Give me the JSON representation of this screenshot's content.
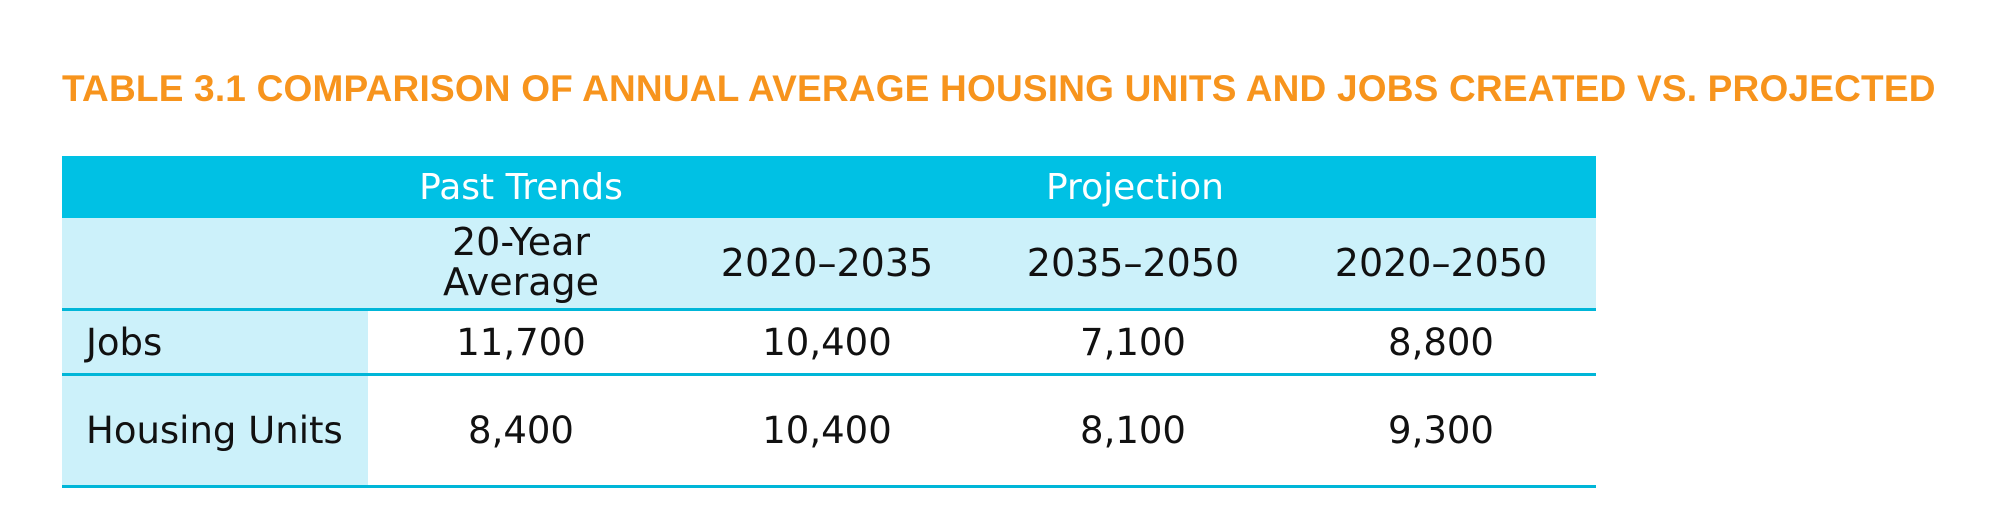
{
  "title": "TABLE 3.1 COMPARISON OF ANNUAL AVERAGE HOUSING UNITS AND JOBS CREATED VS. PROJECTED",
  "table": {
    "group_headers": {
      "past_trends": "Past Trends",
      "projection": "Projection"
    },
    "sub_headers": {
      "col1_line1": "20-Year",
      "col1_line2": "Average",
      "col2": "2020–2035",
      "col3": "2035–2050",
      "col4": "2020–2050"
    },
    "rows": [
      {
        "label": "Jobs",
        "values": [
          "11,700",
          "10,400",
          "7,100",
          "8,800"
        ]
      },
      {
        "label": "Housing Units",
        "values": [
          "8,400",
          "10,400",
          "8,100",
          "9,300"
        ]
      }
    ]
  },
  "colors": {
    "title": "#f7941d",
    "header_bg": "#00c1e4",
    "subheader_bg": "#ccf1fa",
    "rule": "#00b6d8"
  }
}
